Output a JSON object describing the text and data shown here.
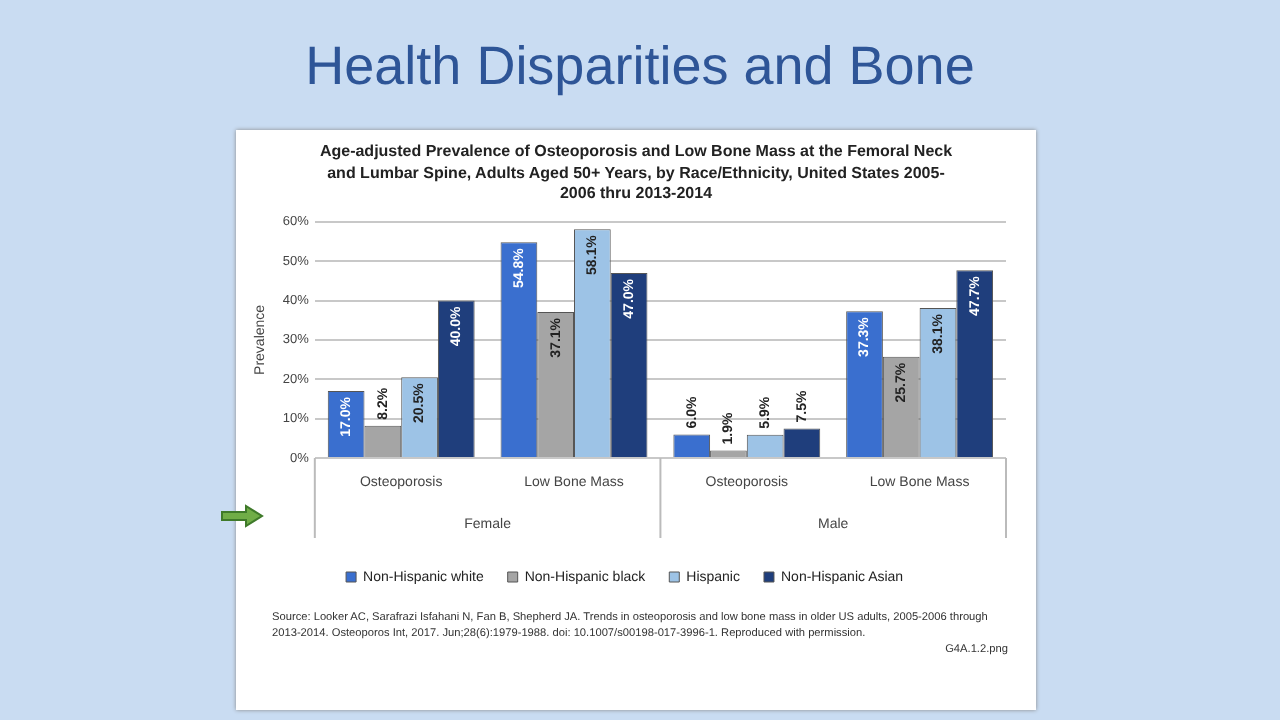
{
  "chart_data": {
    "type": "bar",
    "title": "Health Disparities and Bone",
    "subtitle": "Age-adjusted Prevalence of Osteoporosis and Low Bone Mass at the Femoral Neck and Lumbar Spine, Adults Aged 50+ Years, by Race/Ethnicity, United States 2005-2006 thru 2013-2014",
    "ylabel": "Prevalence",
    "categories": [
      "Osteoporosis",
      "Low Bone Mass",
      "Osteoporosis",
      "Low Bone Mass"
    ],
    "series": [
      {
        "name": "Non-Hispanic white",
        "color": "#3a6fcf",
        "values": [
          17.0,
          54.8,
          6.0,
          37.3
        ],
        "value_labels": [
          "17.0%",
          "54.8%",
          "6.0%",
          "37.3%"
        ]
      },
      {
        "name": "Non-Hispanic black",
        "color": "#a5a5a5",
        "values": [
          8.2,
          37.1,
          1.9,
          25.7
        ],
        "value_labels": [
          "8.2%",
          "37.1%",
          "1.9%",
          "25.7%"
        ]
      },
      {
        "name": "Hispanic",
        "color": "#9dc3e6",
        "values": [
          20.5,
          58.1,
          5.9,
          38.1
        ],
        "value_labels": [
          "20.5%",
          "58.1%",
          "5.9%",
          "38.1%"
        ]
      },
      {
        "name": "Non-Hispanic Asian",
        "color": "#1f3e7c",
        "values": [
          40.0,
          47.0,
          7.5,
          47.7
        ],
        "value_labels": [
          "40.0%",
          "47.0%",
          "7.5%",
          "47.7%"
        ]
      }
    ],
    "ylim": [
      0,
      60
    ],
    "yticks": [
      {
        "value": 0,
        "label": "0%"
      },
      {
        "value": 10,
        "label": "10%"
      },
      {
        "value": 20,
        "label": "20%"
      },
      {
        "value": 30,
        "label": "30%"
      },
      {
        "value": 40,
        "label": "40%"
      },
      {
        "value": 50,
        "label": "50%"
      },
      {
        "value": 60,
        "label": "60%"
      }
    ],
    "grid": "y",
    "legend": "bottom",
    "annotations": [
      "Female",
      "Male",
      "Source: Looker AC, Sarafrazi Isfahani N, Fan B, Shepherd JA. Trends in osteoporosis and low bone mass in older US adults, 2005-2006 through 2013-2014. Osteoporos Int, 2017. Jun;28(6):1979-1988. doi: 10.1007/s00198-017-3996-1. Reproduced with permission.",
      "G4A.1.2.png"
    ]
  }
}
